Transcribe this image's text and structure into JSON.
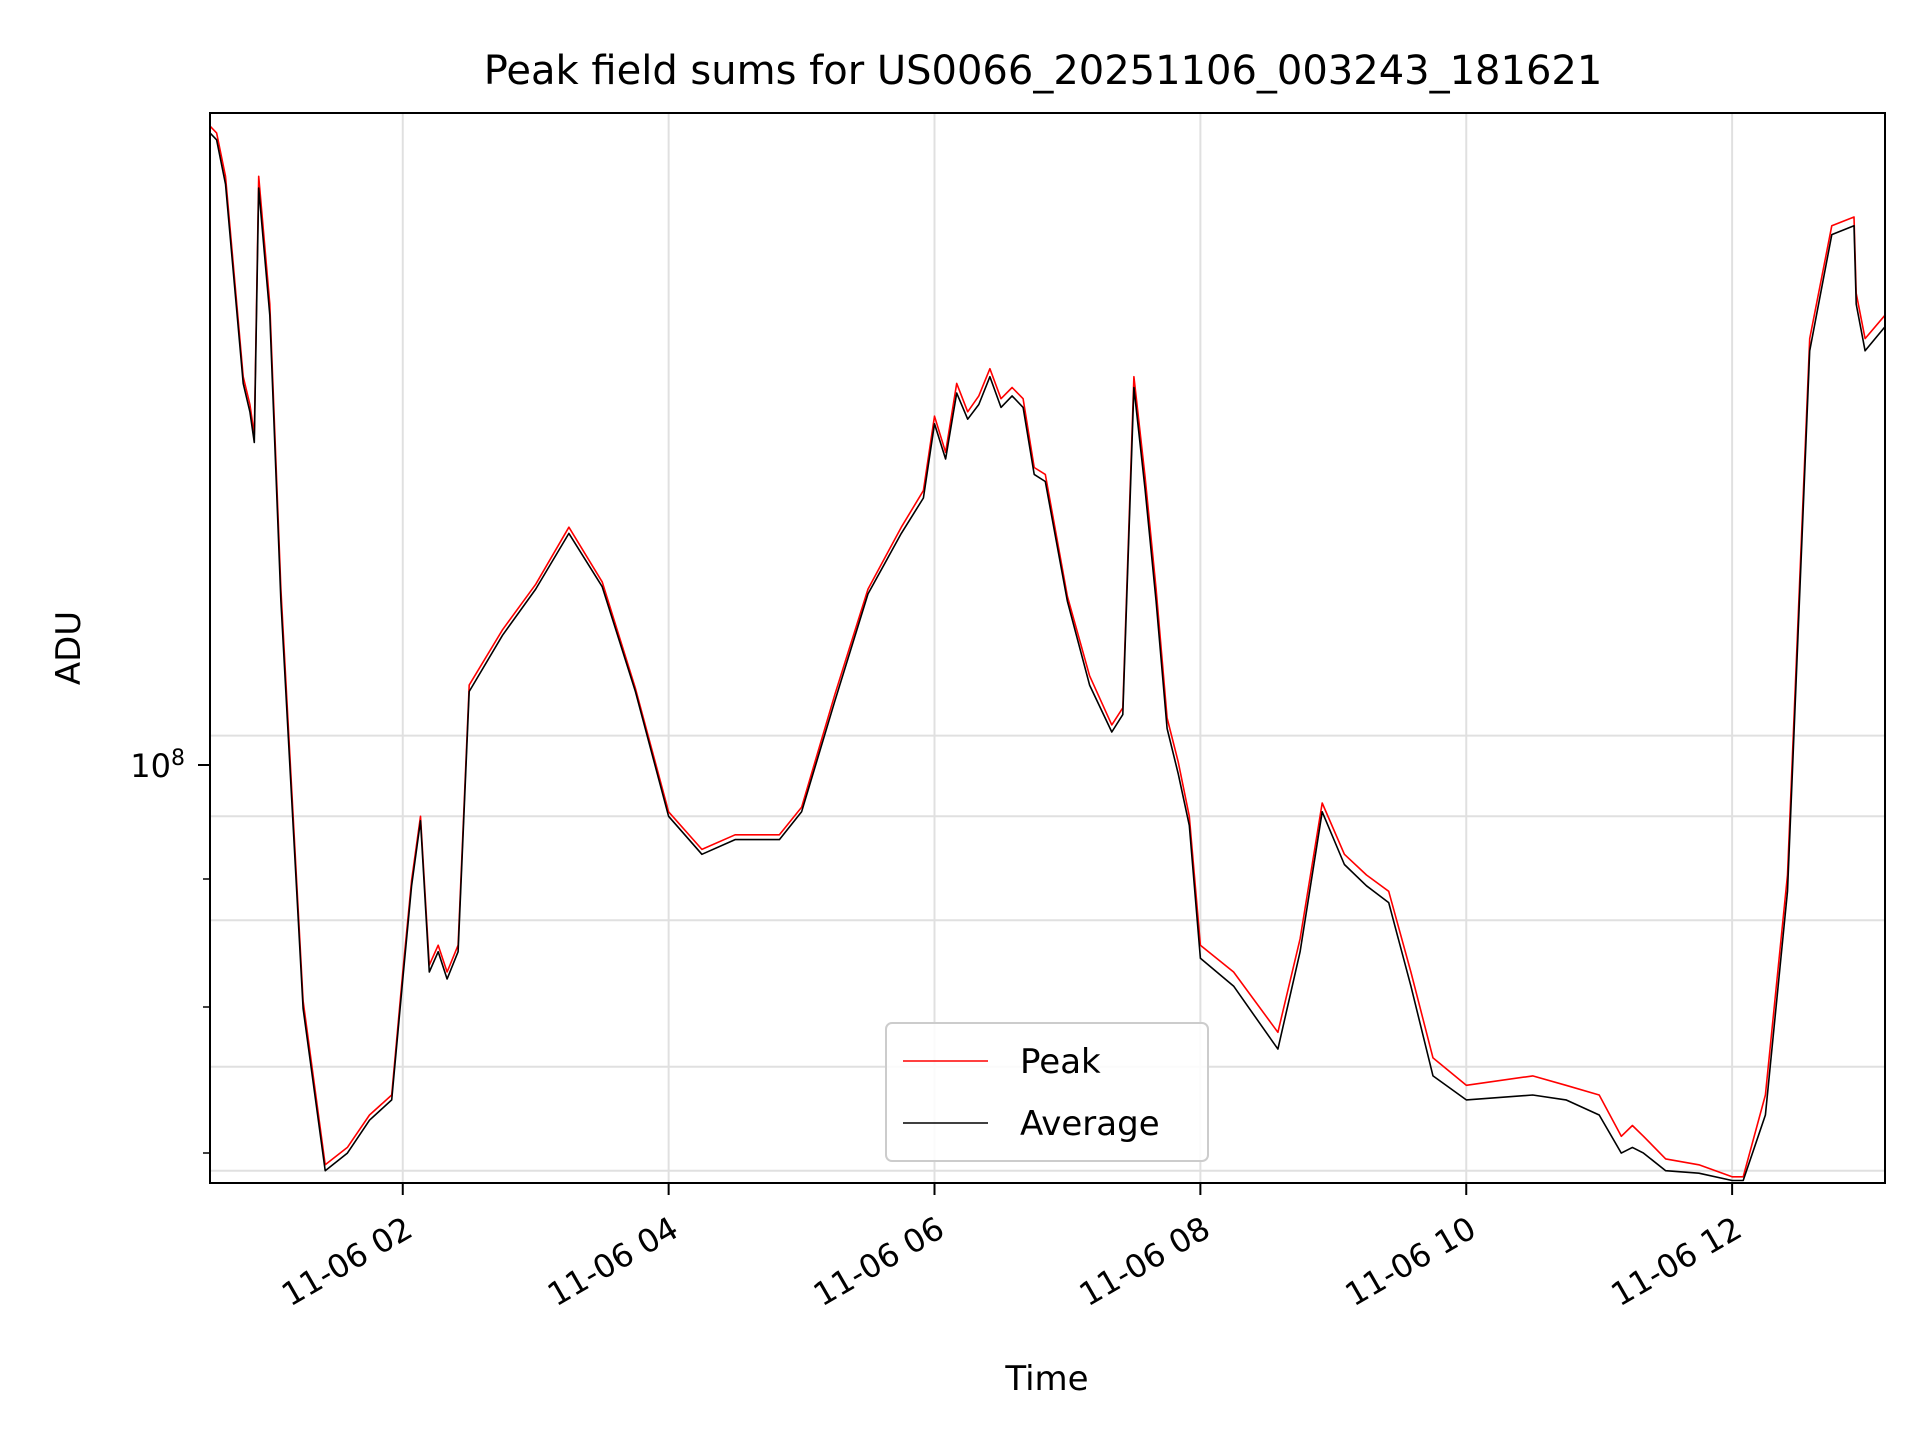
{
  "chart_data": {
    "type": "line",
    "title": "Peak field sums for US0066_20251106_003243_181621",
    "xlabel": "Time",
    "ylabel": "ADU",
    "yscale": "log",
    "grid": true,
    "legend_placement": "lower-center",
    "x_ticks": [
      "11-06 02",
      "11-06 04",
      "11-06 06",
      "11-06 08",
      "11-06 10",
      "11-06 12"
    ],
    "y_tick_label": "10^8",
    "colors": {
      "Peak": "#ff0000",
      "Average": "#000000"
    },
    "xlim": [
      "2025-11-06 00:33",
      "2025-11-06 13:09"
    ],
    "ylim": [
      29000000,
      560000000
    ],
    "series": [
      {
        "name": "Peak",
        "x": [
          "2025-11-06 00:33",
          "2025-11-06 00:36",
          "2025-11-06 00:40",
          "2025-11-06 00:48",
          "2025-11-06 00:51",
          "2025-11-06 00:53",
          "2025-11-06 00:55",
          "2025-11-06 01:00",
          "2025-11-06 01:05",
          "2025-11-06 01:15",
          "2025-11-06 01:25",
          "2025-11-06 01:35",
          "2025-11-06 01:45",
          "2025-11-06 01:55",
          "2025-11-06 02:00",
          "2025-11-06 02:04",
          "2025-11-06 02:08",
          "2025-11-06 02:12",
          "2025-11-06 02:16",
          "2025-11-06 02:20",
          "2025-11-06 02:25",
          "2025-11-06 02:30",
          "2025-11-06 02:45",
          "2025-11-06 03:00",
          "2025-11-06 03:15",
          "2025-11-06 03:30",
          "2025-11-06 03:45",
          "2025-11-06 04:00",
          "2025-11-06 04:15",
          "2025-11-06 04:30",
          "2025-11-06 04:50",
          "2025-11-06 05:00",
          "2025-11-06 05:15",
          "2025-11-06 05:30",
          "2025-11-06 05:45",
          "2025-11-06 05:55",
          "2025-11-06 06:00",
          "2025-11-06 06:05",
          "2025-11-06 06:10",
          "2025-11-06 06:15",
          "2025-11-06 06:20",
          "2025-11-06 06:25",
          "2025-11-06 06:30",
          "2025-11-06 06:35",
          "2025-11-06 06:40",
          "2025-11-06 06:45",
          "2025-11-06 06:50",
          "2025-11-06 07:00",
          "2025-11-06 07:10",
          "2025-11-06 07:20",
          "2025-11-06 07:25",
          "2025-11-06 07:30",
          "2025-11-06 07:35",
          "2025-11-06 07:40",
          "2025-11-06 07:45",
          "2025-11-06 07:50",
          "2025-11-06 07:55",
          "2025-11-06 08:00",
          "2025-11-06 08:15",
          "2025-11-06 08:35",
          "2025-11-06 08:45",
          "2025-11-06 08:55",
          "2025-11-06 09:05",
          "2025-11-06 09:15",
          "2025-11-06 09:25",
          "2025-11-06 09:35",
          "2025-11-06 09:45",
          "2025-11-06 10:00",
          "2025-11-06 10:30",
          "2025-11-06 10:45",
          "2025-11-06 11:00",
          "2025-11-06 11:10",
          "2025-11-06 11:15",
          "2025-11-06 11:20",
          "2025-11-06 11:30",
          "2025-11-06 11:45",
          "2025-11-06 12:00",
          "2025-11-06 12:05",
          "2025-11-06 12:15",
          "2025-11-06 12:25",
          "2025-11-06 12:35",
          "2025-11-06 12:45",
          "2025-11-06 12:55",
          "2025-11-06 12:56",
          "2025-11-06 13:00",
          "2025-11-06 13:09"
        ],
        "values": [
          540000000,
          530000000,
          470000000,
          270000000,
          250000000,
          230000000,
          470000000,
          330000000,
          150000000,
          48000000,
          30500000,
          32000000,
          35000000,
          37000000,
          52000000,
          67000000,
          80000000,
          53000000,
          56000000,
          52000000,
          56000000,
          115000000,
          134000000,
          152000000,
          178000000,
          153000000,
          114000000,
          81000000,
          73000000,
          76000000,
          76000000,
          82000000,
          112000000,
          150000000,
          178000000,
          197000000,
          242000000,
          219000000,
          265000000,
          245000000,
          256000000,
          276000000,
          254000000,
          262000000,
          254000000,
          210000000,
          206000000,
          147000000,
          118000000,
          103000000,
          108000000,
          270000000,
          205000000,
          150000000,
          105000000,
          93000000,
          80000000,
          56000000,
          52000000,
          44000000,
          57000000,
          83000000,
          72000000,
          68000000,
          65000000,
          52000000,
          41000000,
          38000000,
          39000000,
          38000000,
          37000000,
          33000000,
          34000000,
          33000000,
          31000000,
          30500000,
          29500000,
          29500000,
          37000000,
          68000000,
          300000000,
          410000000,
          420000000,
          340000000,
          300000000,
          320000000
        ]
      },
      {
        "name": "Average",
        "x": [
          "2025-11-06 00:33",
          "2025-11-06 00:36",
          "2025-11-06 00:40",
          "2025-11-06 00:48",
          "2025-11-06 00:51",
          "2025-11-06 00:53",
          "2025-11-06 00:55",
          "2025-11-06 01:00",
          "2025-11-06 01:05",
          "2025-11-06 01:15",
          "2025-11-06 01:25",
          "2025-11-06 01:35",
          "2025-11-06 01:45",
          "2025-11-06 01:55",
          "2025-11-06 02:00",
          "2025-11-06 02:04",
          "2025-11-06 02:08",
          "2025-11-06 02:12",
          "2025-11-06 02:16",
          "2025-11-06 02:20",
          "2025-11-06 02:25",
          "2025-11-06 02:30",
          "2025-11-06 02:45",
          "2025-11-06 03:00",
          "2025-11-06 03:15",
          "2025-11-06 03:30",
          "2025-11-06 03:45",
          "2025-11-06 04:00",
          "2025-11-06 04:15",
          "2025-11-06 04:30",
          "2025-11-06 04:50",
          "2025-11-06 05:00",
          "2025-11-06 05:15",
          "2025-11-06 05:30",
          "2025-11-06 05:45",
          "2025-11-06 05:55",
          "2025-11-06 06:00",
          "2025-11-06 06:05",
          "2025-11-06 06:10",
          "2025-11-06 06:15",
          "2025-11-06 06:20",
          "2025-11-06 06:25",
          "2025-11-06 06:30",
          "2025-11-06 06:35",
          "2025-11-06 06:40",
          "2025-11-06 06:45",
          "2025-11-06 06:50",
          "2025-11-06 07:00",
          "2025-11-06 07:10",
          "2025-11-06 07:20",
          "2025-11-06 07:25",
          "2025-11-06 07:30",
          "2025-11-06 07:35",
          "2025-11-06 07:40",
          "2025-11-06 07:45",
          "2025-11-06 07:50",
          "2025-11-06 07:55",
          "2025-11-06 08:00",
          "2025-11-06 08:15",
          "2025-11-06 08:35",
          "2025-11-06 08:45",
          "2025-11-06 08:55",
          "2025-11-06 09:05",
          "2025-11-06 09:15",
          "2025-11-06 09:25",
          "2025-11-06 09:35",
          "2025-11-06 09:45",
          "2025-11-06 10:00",
          "2025-11-06 10:30",
          "2025-11-06 10:45",
          "2025-11-06 11:00",
          "2025-11-06 11:10",
          "2025-11-06 11:15",
          "2025-11-06 11:20",
          "2025-11-06 11:30",
          "2025-11-06 11:45",
          "2025-11-06 12:00",
          "2025-11-06 12:05",
          "2025-11-06 12:15",
          "2025-11-06 12:25",
          "2025-11-06 12:35",
          "2025-11-06 12:45",
          "2025-11-06 12:55",
          "2025-11-06 12:56",
          "2025-11-06 13:00",
          "2025-11-06 13:09"
        ],
        "values": [
          530000000,
          520000000,
          460000000,
          265000000,
          245000000,
          225000000,
          455000000,
          320000000,
          145000000,
          47000000,
          30000000,
          31500000,
          34500000,
          36500000,
          51000000,
          66000000,
          79000000,
          52000000,
          55000000,
          51000000,
          55000000,
          113000000,
          132000000,
          150000000,
          175000000,
          151000000,
          113000000,
          80000000,
          72000000,
          75000000,
          75000000,
          81000000,
          110000000,
          148000000,
          175000000,
          193000000,
          237000000,
          215000000,
          258000000,
          240000000,
          250000000,
          270000000,
          248000000,
          256000000,
          248000000,
          206000000,
          202000000,
          145000000,
          115000000,
          101000000,
          106000000,
          262000000,
          198000000,
          145000000,
          102000000,
          90000000,
          78000000,
          54000000,
          50000000,
          42000000,
          55000000,
          81000000,
          70000000,
          66000000,
          63000000,
          50000000,
          39000000,
          36500000,
          37000000,
          36500000,
          35000000,
          31500000,
          32000000,
          31500000,
          30000000,
          29800000,
          29200000,
          29200000,
          35000000,
          65000000,
          290000000,
          400000000,
          410000000,
          330000000,
          290000000,
          310000000
        ]
      }
    ]
  }
}
